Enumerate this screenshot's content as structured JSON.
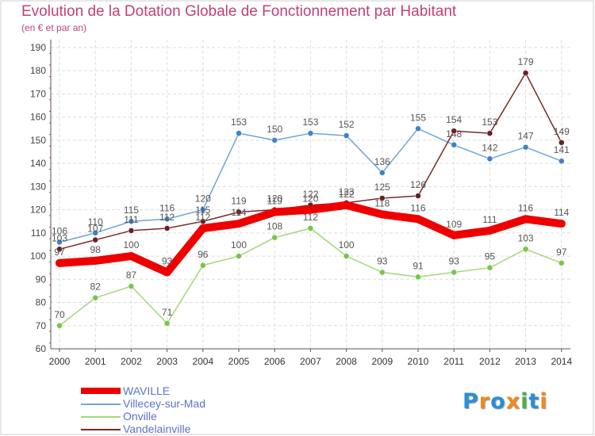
{
  "header": {
    "title": "Evolution de la Dotation Globale de Fonctionnement par Habitant",
    "subtitle": "(en € et par an)"
  },
  "chart_data": {
    "type": "line",
    "title": "Evolution de la Dotation Globale de Fonctionnement par Habitant",
    "subtitle": "(en € et par an)",
    "xlabel": "",
    "ylabel": "",
    "ylim": [
      60,
      190
    ],
    "yticks": [
      60,
      70,
      80,
      90,
      100,
      110,
      120,
      130,
      140,
      150,
      160,
      170,
      180,
      190
    ],
    "x": [
      "2000",
      "2001",
      "2002",
      "2003",
      "2004",
      "2005",
      "2006",
      "2007",
      "2008",
      "2009",
      "2010",
      "2011",
      "2012",
      "2013",
      "2014"
    ],
    "grid": true,
    "legend_position": "bottom-left",
    "series": [
      {
        "name": "Villecey-sur-Mad",
        "color": "#6fa5d6",
        "marker": "#3f83c6",
        "values": [
          106,
          110,
          115,
          116,
          120,
          153,
          150,
          153,
          152,
          136,
          155,
          148,
          142,
          147,
          141
        ]
      },
      {
        "name": "Onville",
        "color": "#a5d67c",
        "marker": "#79c44a",
        "values": [
          70,
          82,
          87,
          71,
          96,
          100,
          108,
          112,
          100,
          93,
          91,
          93,
          95,
          103,
          97
        ]
      },
      {
        "name": "Vandelainville",
        "color": "#7a2a2a",
        "marker": "#6b1f24",
        "values": [
          103,
          107,
          111,
          112,
          115,
          119,
          120,
          122,
          123,
          125,
          126,
          154,
          153,
          179,
          149
        ]
      },
      {
        "name": "WAVILLE",
        "color": "#ee0000",
        "marker": "#ee0000",
        "values": [
          97,
          98,
          100,
          93,
          112,
          114,
          119,
          120,
          122,
          118,
          116,
          109,
          111,
          116,
          114
        ]
      }
    ]
  },
  "legend": {
    "items": [
      {
        "label": "WAVILLE",
        "color": "#ee0000"
      },
      {
        "label": "Villecey-sur-Mad",
        "color": "#6fa5d6"
      },
      {
        "label": "Onville",
        "color": "#a5d67c"
      },
      {
        "label": "Vandelainville",
        "color": "#7a2a2a"
      }
    ]
  },
  "logo": {
    "text": "Proxiti",
    "letters": [
      "P",
      "r",
      "o",
      "x",
      "i",
      "t",
      "i"
    ],
    "colors": [
      "#2a8fd6",
      "#f08a1c",
      "#2a8fd6",
      "#f08a1c",
      "#4caf50",
      "#2a8fd6",
      "#f08a1c"
    ]
  }
}
